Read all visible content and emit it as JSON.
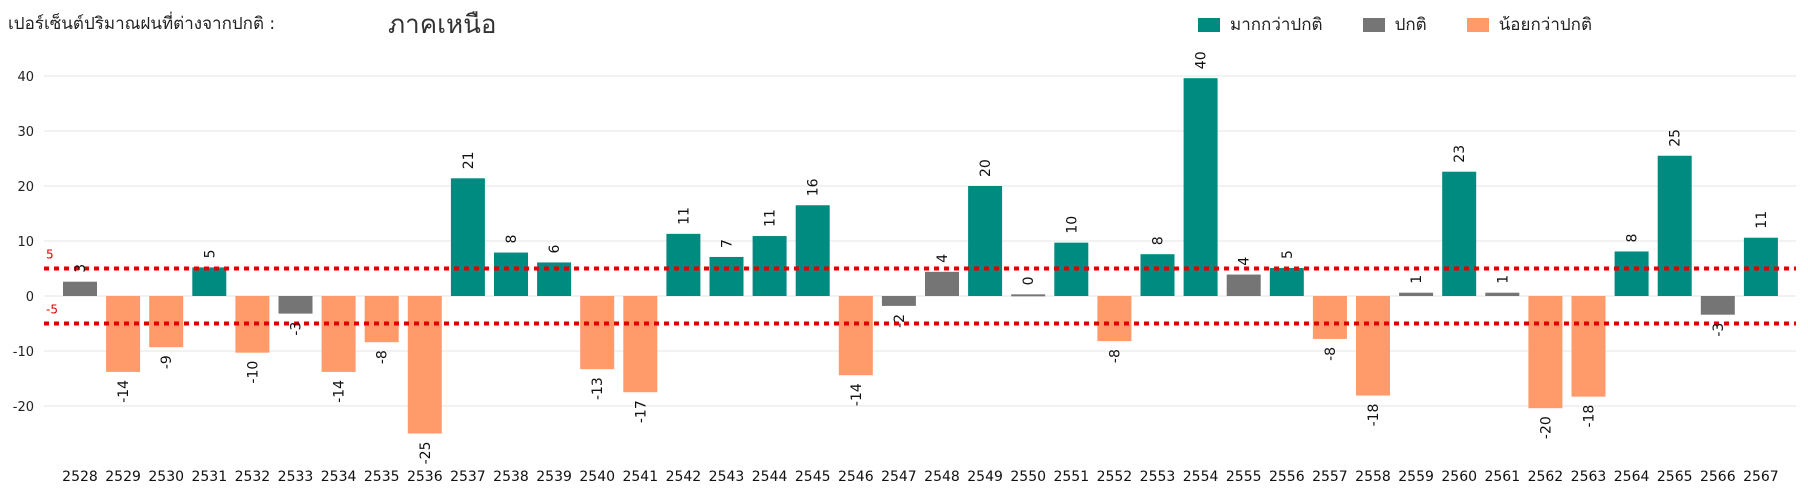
{
  "header": {
    "label": "เปอร์เซ็นต์ปริมาณฝนที่ต่างจากปกติ :",
    "region": "ภาคเหนือ"
  },
  "legend": [
    {
      "name": "มากกว่าปกติ",
      "color": "#008B80"
    },
    {
      "name": "ปกติ",
      "color": "#757575"
    },
    {
      "name": "น้อยกว่าปกติ",
      "color": "#FF9A6A"
    }
  ],
  "chart_data": {
    "type": "bar",
    "categories": [
      "2528",
      "2529",
      "2530",
      "2531",
      "2532",
      "2533",
      "2534",
      "2535",
      "2536",
      "2537",
      "2538",
      "2539",
      "2540",
      "2541",
      "2542",
      "2543",
      "2544",
      "2545",
      "2546",
      "2547",
      "2548",
      "2549",
      "2550",
      "2551",
      "2552",
      "2553",
      "2554",
      "2555",
      "2556",
      "2557",
      "2558",
      "2559",
      "2560",
      "2561",
      "2562",
      "2563",
      "2564",
      "2565",
      "2566",
      "2567"
    ],
    "values": [
      3,
      -14,
      -9,
      5,
      -10,
      -3,
      -14,
      -8,
      -25,
      21,
      8,
      6,
      -13,
      -17,
      11,
      7,
      11,
      16,
      -14,
      -2,
      4,
      20,
      0,
      10,
      -8,
      8,
      40,
      4,
      5,
      -8,
      -18,
      1,
      23,
      1,
      -20,
      -18,
      8,
      25,
      -3,
      11
    ],
    "bar_values": [
      2.6,
      -13.8,
      -9.3,
      5.2,
      -10.3,
      -3.2,
      -13.8,
      -8.4,
      -25.0,
      21.4,
      7.9,
      6.1,
      -13.3,
      -17.5,
      11.3,
      7.1,
      10.9,
      16.5,
      -14.4,
      -1.8,
      4.4,
      20.0,
      0.3,
      9.7,
      -8.2,
      7.6,
      39.6,
      3.9,
      5.1,
      -7.8,
      -18.1,
      0.6,
      22.6,
      0.6,
      -20.4,
      -18.3,
      8.1,
      25.5,
      -3.4,
      10.6
    ],
    "bar_colors": [
      "#757575",
      "#FF9A6A",
      "#FF9A6A",
      "#008B80",
      "#FF9A6A",
      "#757575",
      "#FF9A6A",
      "#FF9A6A",
      "#FF9A6A",
      "#008B80",
      "#008B80",
      "#008B80",
      "#FF9A6A",
      "#FF9A6A",
      "#008B80",
      "#008B80",
      "#008B80",
      "#008B80",
      "#FF9A6A",
      "#757575",
      "#757575",
      "#008B80",
      "#757575",
      "#008B80",
      "#FF9A6A",
      "#008B80",
      "#008B80",
      "#757575",
      "#008B80",
      "#FF9A6A",
      "#FF9A6A",
      "#757575",
      "#008B80",
      "#757575",
      "#FF9A6A",
      "#FF9A6A",
      "#008B80",
      "#008B80",
      "#757575",
      "#008B80"
    ],
    "yticks": [
      40,
      30,
      20,
      10,
      0,
      -10,
      -20
    ],
    "ylim": [
      -26,
      43
    ],
    "reference_lines": [
      {
        "value": 5,
        "label": "5",
        "color": "#E00000"
      },
      {
        "value": -5,
        "label": "-5",
        "color": "#E00000"
      }
    ],
    "grid": true,
    "legend_position": "top-right"
  }
}
